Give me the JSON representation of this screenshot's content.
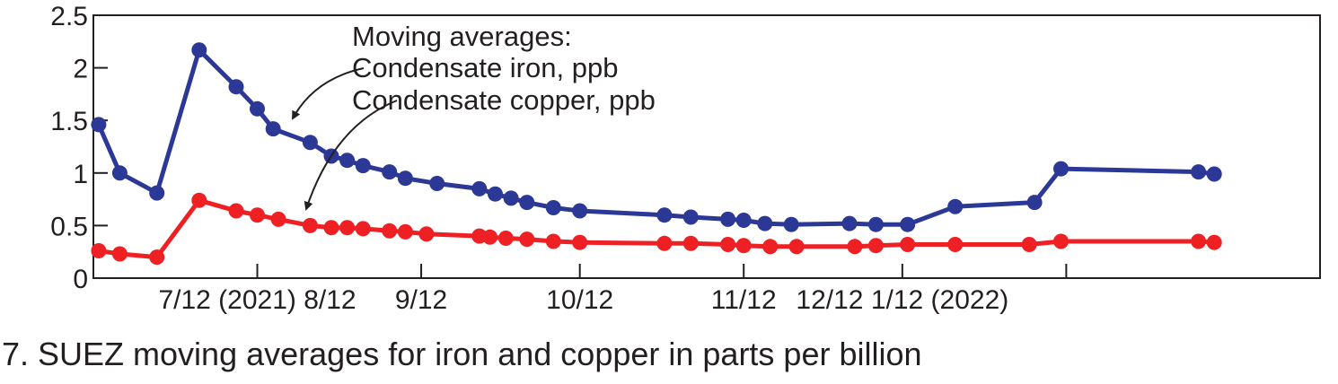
{
  "caption": "7. SUEZ moving averages for iron and copper in parts per billion",
  "chart_data": {
    "type": "line",
    "title": "",
    "xlabel": "",
    "ylabel": "",
    "ylim": [
      0,
      2.5
    ],
    "y_ticks": [
      {
        "value": 0,
        "label": "0"
      },
      {
        "value": 0.5,
        "label": "0.5"
      },
      {
        "value": 1,
        "label": "1"
      },
      {
        "value": 1.5,
        "label": "1.5"
      },
      {
        "value": 2,
        "label": "2"
      },
      {
        "value": 2.5,
        "label": "2.5"
      }
    ],
    "xlim": [
      "2021-07-12",
      "2022-03-01"
    ],
    "x_ticks": [
      {
        "date": "2021-08-12",
        "label": "7/12 (2021) 8/12"
      },
      {
        "date": "2021-09-12",
        "label": "9/12"
      },
      {
        "date": "2021-10-12",
        "label": "10/12"
      },
      {
        "date": "2021-11-12",
        "label": "11/12"
      },
      {
        "date": "2021-12-12",
        "label": "12/12 1/12 (2022)"
      },
      {
        "date": "2022-01-12",
        "label": ""
      }
    ],
    "grid": false,
    "annotation": {
      "lines": [
        "Moving averages:",
        "Condensate iron, ppb",
        "Condensate copper, ppb"
      ]
    },
    "series": [
      {
        "name": "Condensate iron, ppb",
        "color": "#2b3896",
        "points": [
          [
            "2021-07-13",
            1.46
          ],
          [
            "2021-07-17",
            1.0
          ],
          [
            "2021-07-24",
            0.81
          ],
          [
            "2021-08-01",
            2.17
          ],
          [
            "2021-08-08",
            1.82
          ],
          [
            "2021-08-12",
            1.61
          ],
          [
            "2021-08-15",
            1.42
          ],
          [
            "2021-08-22",
            1.29
          ],
          [
            "2021-08-26",
            1.16
          ],
          [
            "2021-08-29",
            1.12
          ],
          [
            "2021-09-01",
            1.07
          ],
          [
            "2021-09-06",
            1.01
          ],
          [
            "2021-09-09",
            0.95
          ],
          [
            "2021-09-15",
            0.9
          ],
          [
            "2021-09-23",
            0.85
          ],
          [
            "2021-09-26",
            0.8
          ],
          [
            "2021-09-29",
            0.76
          ],
          [
            "2021-10-02",
            0.72
          ],
          [
            "2021-10-07",
            0.67
          ],
          [
            "2021-10-12",
            0.64
          ],
          [
            "2021-10-28",
            0.6
          ],
          [
            "2021-11-02",
            0.58
          ],
          [
            "2021-11-09",
            0.56
          ],
          [
            "2021-11-12",
            0.55
          ],
          [
            "2021-11-16",
            0.52
          ],
          [
            "2021-11-21",
            0.51
          ],
          [
            "2021-12-02",
            0.52
          ],
          [
            "2021-12-07",
            0.51
          ],
          [
            "2021-12-13",
            0.51
          ],
          [
            "2021-12-22",
            0.68
          ],
          [
            "2022-01-06",
            0.72
          ],
          [
            "2022-01-11",
            1.04
          ],
          [
            "2022-02-06",
            1.01
          ],
          [
            "2022-02-09",
            0.99
          ]
        ]
      },
      {
        "name": "Condensate copper, ppb",
        "color": "#ee2024",
        "points": [
          [
            "2021-07-13",
            0.26
          ],
          [
            "2021-07-17",
            0.23
          ],
          [
            "2021-07-24",
            0.2
          ],
          [
            "2021-08-01",
            0.74
          ],
          [
            "2021-08-08",
            0.64
          ],
          [
            "2021-08-12",
            0.6
          ],
          [
            "2021-08-16",
            0.56
          ],
          [
            "2021-08-22",
            0.5
          ],
          [
            "2021-08-26",
            0.48
          ],
          [
            "2021-08-29",
            0.48
          ],
          [
            "2021-09-01",
            0.47
          ],
          [
            "2021-09-06",
            0.45
          ],
          [
            "2021-09-09",
            0.44
          ],
          [
            "2021-09-13",
            0.42
          ],
          [
            "2021-09-23",
            0.4
          ],
          [
            "2021-09-25",
            0.39
          ],
          [
            "2021-09-28",
            0.38
          ],
          [
            "2021-10-02",
            0.37
          ],
          [
            "2021-10-07",
            0.35
          ],
          [
            "2021-10-12",
            0.34
          ],
          [
            "2021-10-28",
            0.33
          ],
          [
            "2021-11-02",
            0.33
          ],
          [
            "2021-11-09",
            0.32
          ],
          [
            "2021-11-12",
            0.31
          ],
          [
            "2021-11-17",
            0.3
          ],
          [
            "2021-11-22",
            0.3
          ],
          [
            "2021-12-03",
            0.3
          ],
          [
            "2021-12-07",
            0.31
          ],
          [
            "2021-12-13",
            0.32
          ],
          [
            "2021-12-22",
            0.32
          ],
          [
            "2022-01-05",
            0.32
          ],
          [
            "2022-01-11",
            0.35
          ],
          [
            "2022-02-06",
            0.35
          ],
          [
            "2022-02-09",
            0.34
          ]
        ]
      }
    ]
  }
}
